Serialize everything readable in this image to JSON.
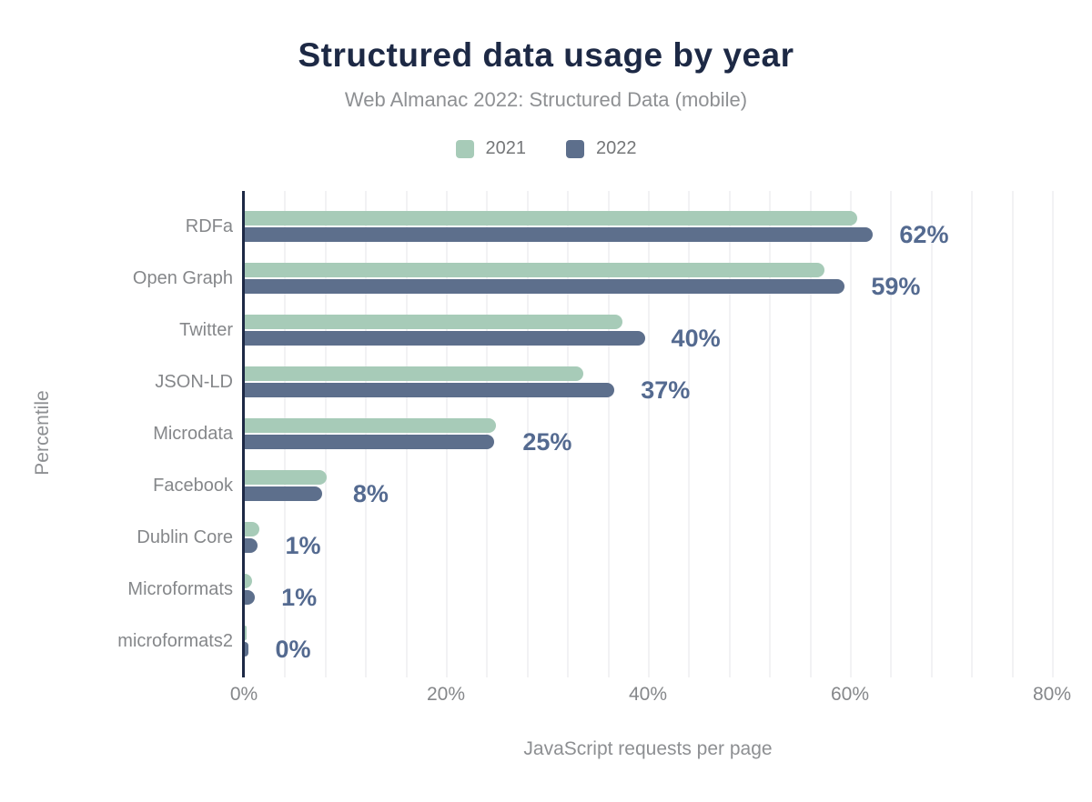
{
  "chart_data": {
    "type": "bar",
    "orientation": "horizontal",
    "title": "Structured data usage by year",
    "subtitle": "Web Almanac 2022: Structured Data (mobile)",
    "xlabel": "JavaScript requests per page",
    "ylabel": "Percentile",
    "categories": [
      "RDFa",
      "Open Graph",
      "Twitter",
      "JSON-LD",
      "Microdata",
      "Facebook",
      "Dublin Core",
      "Microformats",
      "microformats2"
    ],
    "series": [
      {
        "name": "2021",
        "color": "#a7cbb8",
        "values": [
          60.6,
          57.4,
          37.4,
          33.5,
          24.9,
          8.1,
          1.4,
          0.7,
          0.2
        ]
      },
      {
        "name": "2022",
        "color": "#5d6f8c",
        "values": [
          62.2,
          59.4,
          39.6,
          36.6,
          24.7,
          7.7,
          1.3,
          1.0,
          0.4
        ]
      }
    ],
    "bar_labels": [
      "62%",
      "59%",
      "40%",
      "37%",
      "25%",
      "8%",
      "1%",
      "1%",
      "0%"
    ],
    "x_ticks": [
      "0%",
      "20%",
      "40%",
      "60%",
      "80%"
    ],
    "x_tick_values": [
      0,
      20,
      40,
      60,
      80
    ],
    "xlim": [
      0,
      84
    ],
    "grid_step_pct": 4,
    "grid": true,
    "legend_position": "top",
    "style": {
      "background": "#ffffff",
      "title_color": "#1d2945",
      "subtitle_color": "#8e9093",
      "legend_label_color": "#757779",
      "axis_line_color": "#1d2945",
      "gridline_color": "#f2f2f4",
      "tick_label_color": "#85878a",
      "category_label_color": "#85878a",
      "value_label_color": "#546a90",
      "axis_title_color": "#8d8f92"
    }
  }
}
